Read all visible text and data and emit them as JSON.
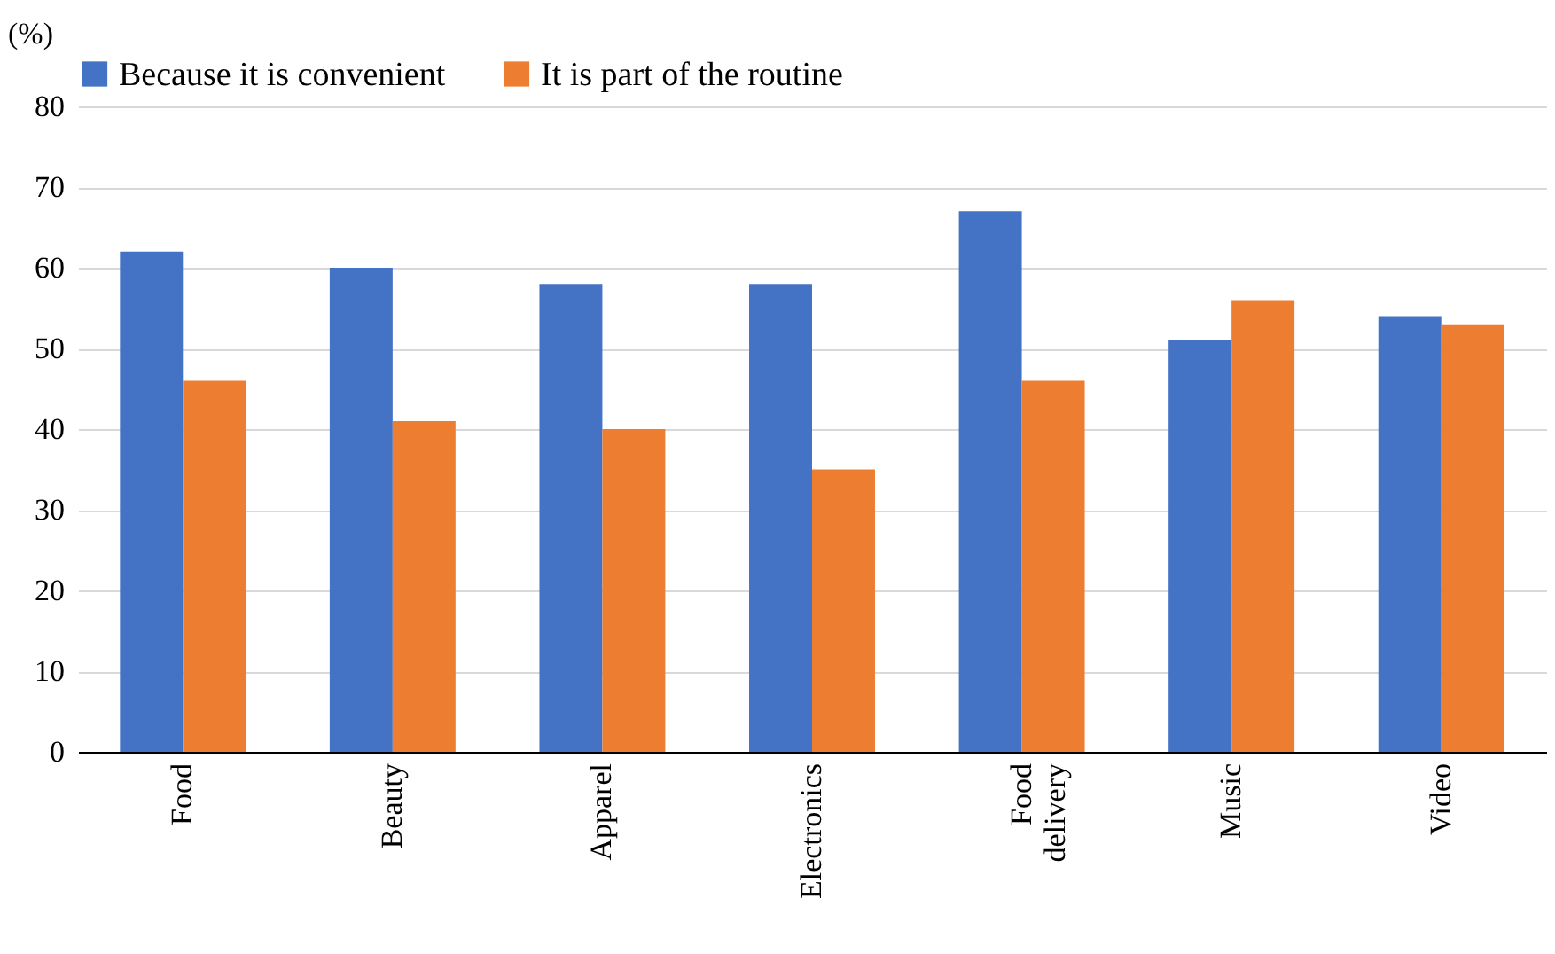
{
  "chart_data": {
    "type": "bar",
    "ylabel": "(%)",
    "categories": [
      "Food",
      "Beauty",
      "Apparel",
      "Electronics",
      "Food delivery",
      "Music",
      "Video"
    ],
    "series": [
      {
        "name": "Because it is convenient",
        "color": "#4472c4",
        "values": [
          62,
          60,
          58,
          58,
          67,
          51,
          54
        ]
      },
      {
        "name": "It is part of the routine",
        "color": "#ed7d31",
        "values": [
          46,
          41,
          40,
          35,
          46,
          56,
          53
        ]
      }
    ],
    "ylim": [
      0,
      80
    ],
    "yticks": [
      0,
      10,
      20,
      30,
      40,
      50,
      60,
      70,
      80
    ],
    "grid": "y",
    "legend": "top"
  }
}
